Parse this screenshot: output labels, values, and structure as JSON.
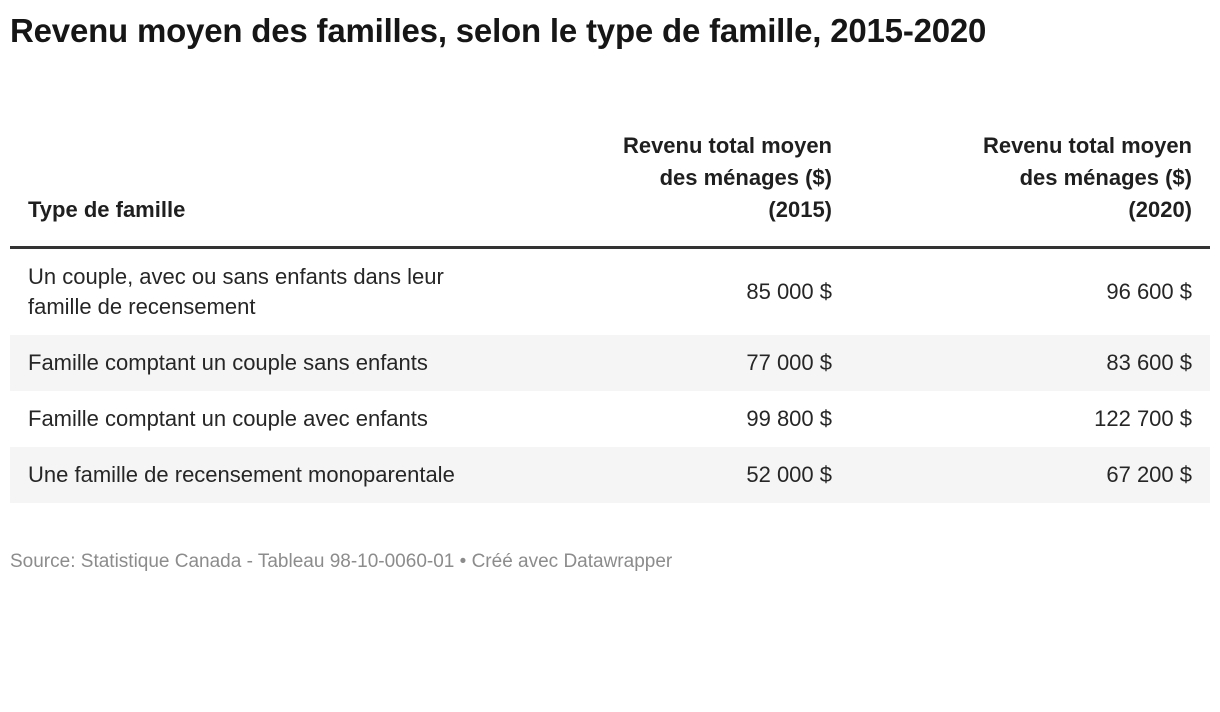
{
  "title": "Revenu moyen des familles, selon le type de famille, 2015-2020",
  "table": {
    "columns": [
      {
        "label": "Type de famille",
        "lines": [
          "Type de famille"
        ]
      },
      {
        "label": "Revenu total moyen des ménages ($) (2015)",
        "lines": [
          "Revenu total moyen",
          "des ménages ($)",
          "(2015)"
        ]
      },
      {
        "label": "Revenu total moyen des ménages ($) (2020)",
        "lines": [
          "Revenu total moyen",
          "des ménages ($)",
          "(2020)"
        ]
      }
    ],
    "rows": [
      {
        "type": "Un couple, avec ou sans enfants dans leur famille de recensement",
        "v2015": "85 000 $",
        "v2020": "96 600 $"
      },
      {
        "type": "Famille comptant un couple sans enfants",
        "v2015": "77 000 $",
        "v2020": "83 600 $"
      },
      {
        "type": "Famille comptant un couple avec enfants",
        "v2015": "99 800 $",
        "v2020": "122 700 $"
      },
      {
        "type": "Une famille de recensement monoparentale",
        "v2015": "52 000 $",
        "v2020": "67 200 $"
      }
    ]
  },
  "footer": {
    "source_label": "Source:",
    "source": "Statistique Canada - Tableau 98-10-0060-01",
    "separator": "•",
    "attribution": "Créé avec Datawrapper"
  },
  "colors": {
    "title_text": "#161616",
    "body_text": "#262626",
    "header_rule": "#333333",
    "row_stripe": "#f5f5f5",
    "footer_text": "#8c8c8c"
  },
  "chart_data": {
    "type": "table",
    "title": "Revenu moyen des familles, selon le type de famille, 2015-2020",
    "columns": [
      "Type de famille",
      "Revenu total moyen des ménages ($) (2015)",
      "Revenu total moyen des ménages ($) (2020)"
    ],
    "categories": [
      "Un couple, avec ou sans enfants dans leur famille de recensement",
      "Famille comptant un couple sans enfants",
      "Famille comptant un couple avec enfants",
      "Une famille de recensement monoparentale"
    ],
    "series": [
      {
        "name": "Revenu total moyen des ménages ($) (2015)",
        "values": [
          85000,
          77000,
          99800,
          52000
        ]
      },
      {
        "name": "Revenu total moyen des ménages ($) (2020)",
        "values": [
          96600,
          83600,
          122700,
          67200
        ]
      }
    ],
    "unit": "$",
    "source": "Statistique Canada - Tableau 98-10-0060-01",
    "attribution": "Créé avec Datawrapper",
    "layout": {
      "striped_rows": true,
      "value_alignment": "right",
      "header_rule": true
    }
  }
}
